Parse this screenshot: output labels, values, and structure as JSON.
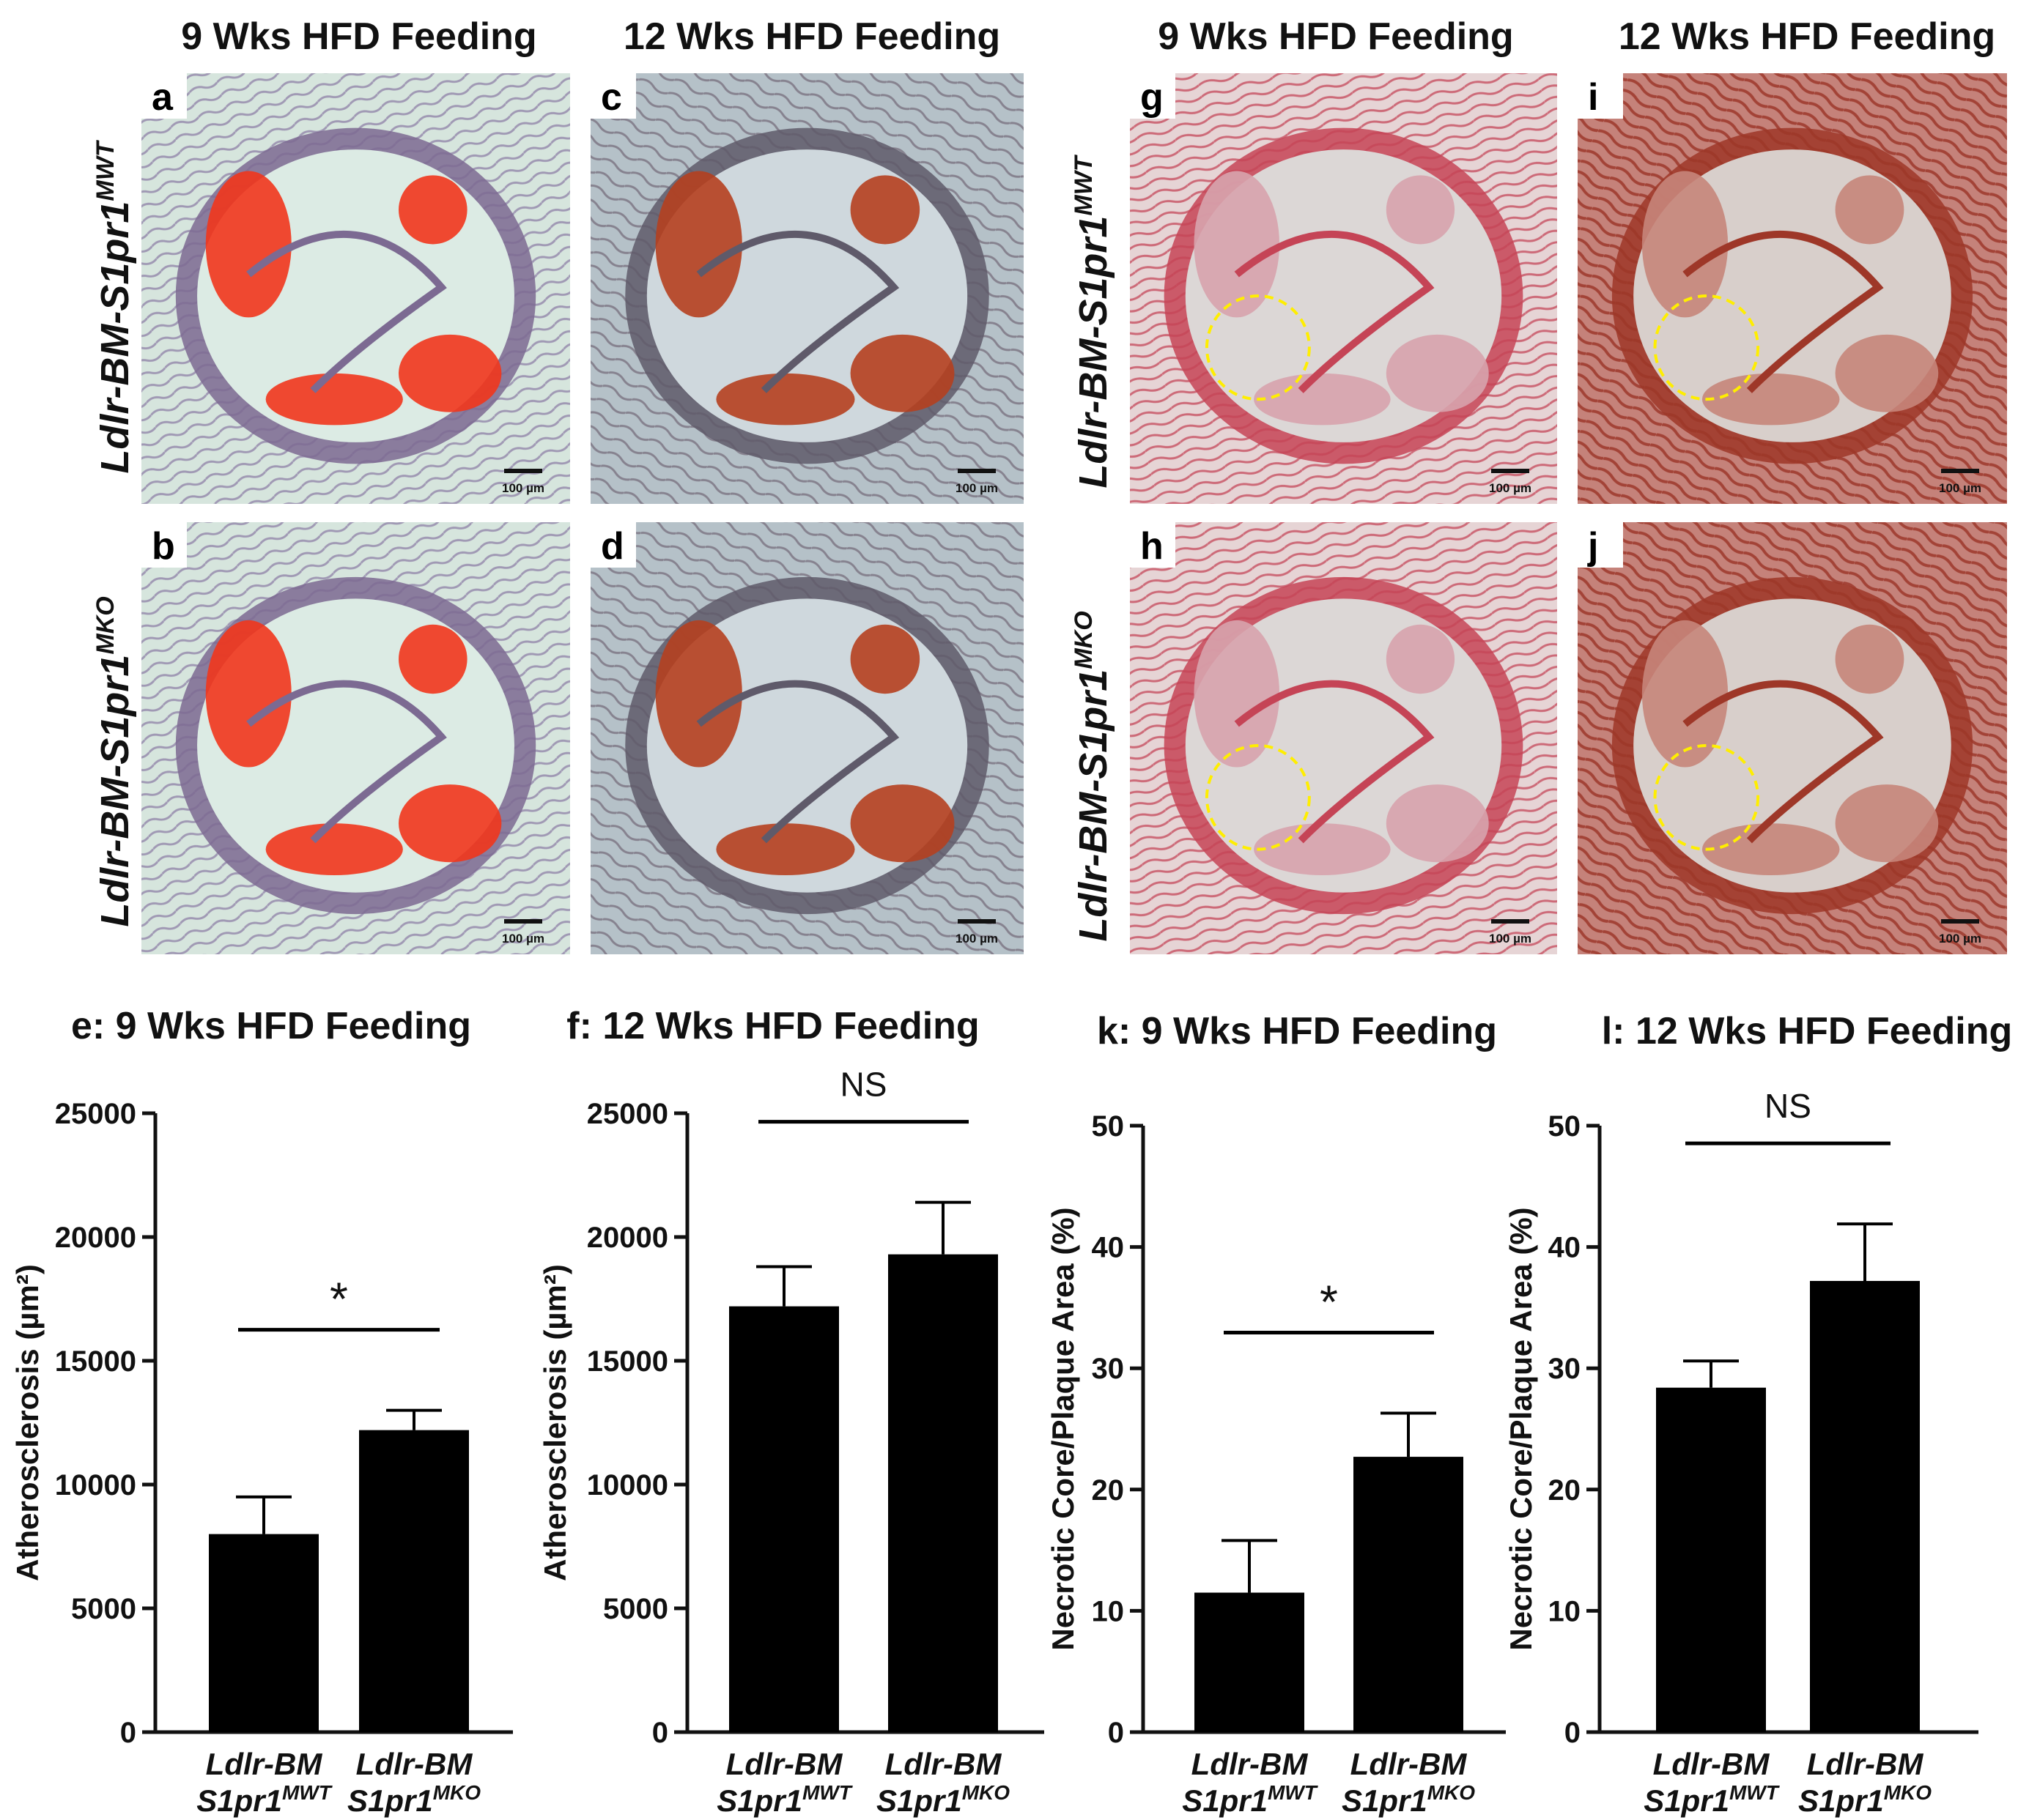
{
  "column_titles": [
    "9 Wks HFD Feeding",
    "12 Wks HFD Feeding",
    "9 Wks HFD Feeding",
    "12 Wks HFD Feeding"
  ],
  "row_labels": {
    "mwt": {
      "prefix": "Ldlr-BM-S1pr1",
      "sup": "MWT"
    },
    "mko": {
      "prefix": "Ldlr-BM-S1pr1",
      "sup": "MKO"
    }
  },
  "panels": [
    {
      "letter": "a",
      "stain": "oil-red-o",
      "scale": "100 µm"
    },
    {
      "letter": "b",
      "stain": "oil-red-o",
      "scale": "100 µm"
    },
    {
      "letter": "c",
      "stain": "oil-red-o-dark",
      "scale": "100 µm"
    },
    {
      "letter": "d",
      "stain": "oil-red-o-dark",
      "scale": "100 µm"
    },
    {
      "letter": "g",
      "stain": "he-light",
      "scale": "100 µm"
    },
    {
      "letter": "h",
      "stain": "he-light",
      "scale": "100 µm"
    },
    {
      "letter": "i",
      "stain": "he-dark",
      "scale": "100 µm"
    },
    {
      "letter": "j",
      "stain": "he-dark",
      "scale": "100 µm"
    }
  ],
  "chart_data": [
    {
      "type": "bar",
      "title": "e: 9 Wks HFD Feeding",
      "ylabel": "Atherosclerosis (µm²)",
      "ylim": [
        0,
        25000
      ],
      "yticks": [
        "0",
        "5000",
        "10000",
        "15000",
        "20000",
        "25000"
      ],
      "categories": [
        {
          "line1": "Ldlr-BM",
          "line2": "S1pr1",
          "sup": "MWT"
        },
        {
          "line1": "Ldlr-BM",
          "line2": "S1pr1",
          "sup": "MKO"
        }
      ],
      "values": [
        8000,
        12200
      ],
      "errors": [
        1500,
        800
      ],
      "significance": "*"
    },
    {
      "type": "bar",
      "title": "f: 12 Wks HFD Feeding",
      "ylabel": "Atherosclerosis (µm²)",
      "ylim": [
        0,
        25000
      ],
      "yticks": [
        "0",
        "5000",
        "10000",
        "15000",
        "20000",
        "25000"
      ],
      "categories": [
        {
          "line1": "Ldlr-BM",
          "line2": "S1pr1",
          "sup": "MWT"
        },
        {
          "line1": "Ldlr-BM",
          "line2": "S1pr1",
          "sup": "MKO"
        }
      ],
      "values": [
        17200,
        19300
      ],
      "errors": [
        1600,
        2100
      ],
      "significance": "NS"
    },
    {
      "type": "bar",
      "title": "k: 9 Wks HFD Feeding",
      "ylabel": "Necrotic Core/Plaque Area (%)",
      "ylim": [
        0,
        50
      ],
      "yticks": [
        "0",
        "10",
        "20",
        "30",
        "40",
        "50"
      ],
      "categories": [
        {
          "line1": "Ldlr-BM",
          "line2": "S1pr1",
          "sup": "MWT"
        },
        {
          "line1": "Ldlr-BM",
          "line2": "S1pr1",
          "sup": "MKO"
        }
      ],
      "values": [
        11.5,
        22.7
      ],
      "errors": [
        4.3,
        3.6
      ],
      "significance": "*"
    },
    {
      "type": "bar",
      "title": "l: 12 Wks HFD Feeding",
      "ylabel": "Necrotic Core/Plaque Area (%)",
      "ylim": [
        0,
        50
      ],
      "yticks": [
        "0",
        "10",
        "20",
        "30",
        "40",
        "50"
      ],
      "categories": [
        {
          "line1": "Ldlr-BM",
          "line2": "S1pr1",
          "sup": "MWT"
        },
        {
          "line1": "Ldlr-BM",
          "line2": "S1pr1",
          "sup": "MKO"
        }
      ],
      "values": [
        28.4,
        37.2
      ],
      "errors": [
        2.2,
        4.7
      ],
      "significance": "NS"
    }
  ]
}
